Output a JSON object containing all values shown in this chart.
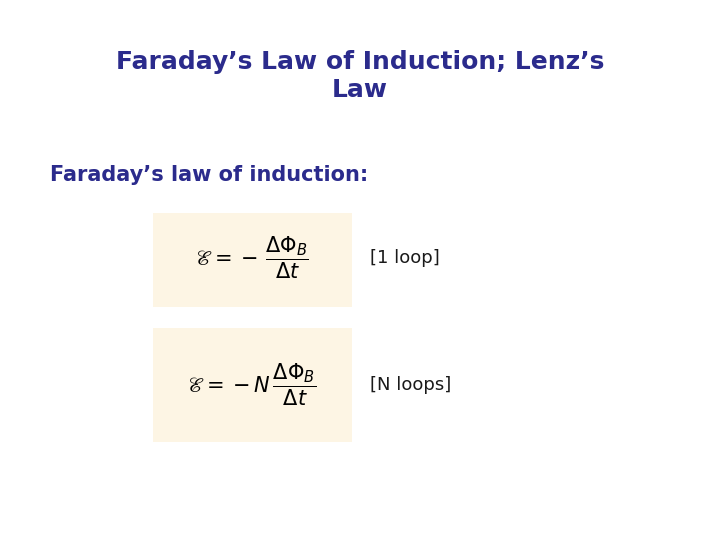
{
  "title": "Faraday’s Law of Induction; Lenz’s\nLaw",
  "subtitle": "Faraday’s law of induction:",
  "formula1": "$\\mathscr{E} = -\\,\\dfrac{\\Delta\\Phi_B}{\\Delta t}$",
  "formula2": "$\\mathscr{E} = -N\\,\\dfrac{\\Delta\\Phi_B}{\\Delta t}$",
  "label1": "[1 loop]",
  "label2": "[N loops]",
  "title_color": "#2B2B8C",
  "subtitle_color": "#2B2B8C",
  "label_color": "#1a1a1a",
  "box_color": "#FDF5E4",
  "background_color": "#ffffff",
  "title_fontsize": 18,
  "subtitle_fontsize": 15,
  "formula_fontsize": 15,
  "label_fontsize": 13
}
